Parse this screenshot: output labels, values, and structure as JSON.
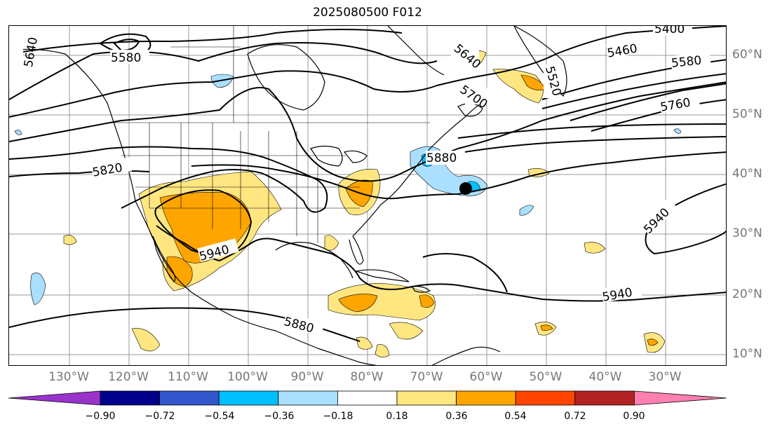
{
  "title": "2025080500 F012",
  "lat_labels": [
    "60°N",
    "50°N",
    "40°N",
    "30°N",
    "20°N",
    "10°N"
  ],
  "lon_labels": [
    "130°W",
    "120°W",
    "110°W",
    "100°W",
    "90°W",
    "80°W",
    "70°W",
    "60°W",
    "50°W",
    "40°W",
    "30°W"
  ],
  "contour_labels": [
    "5400",
    "5460",
    "5580",
    "5760",
    "5880",
    "5820",
    "5940",
    "5640",
    "5520",
    "5940",
    "5880",
    "5580",
    "5640",
    "5700",
    "5940"
  ],
  "colorbar": {
    "ticks": [
      "−0.90",
      "−0.72",
      "−0.54",
      "−0.36",
      "−0.18",
      "0.18",
      "0.36",
      "0.54",
      "0.72",
      "0.90"
    ],
    "colors": [
      "#9933cc",
      "#00008b",
      "#3355cc",
      "#00bfff",
      "#aadfff",
      "#ffffff",
      "#ffe680",
      "#ffa500",
      "#ff4500",
      "#b22222",
      "#ff80b0"
    ]
  }
}
